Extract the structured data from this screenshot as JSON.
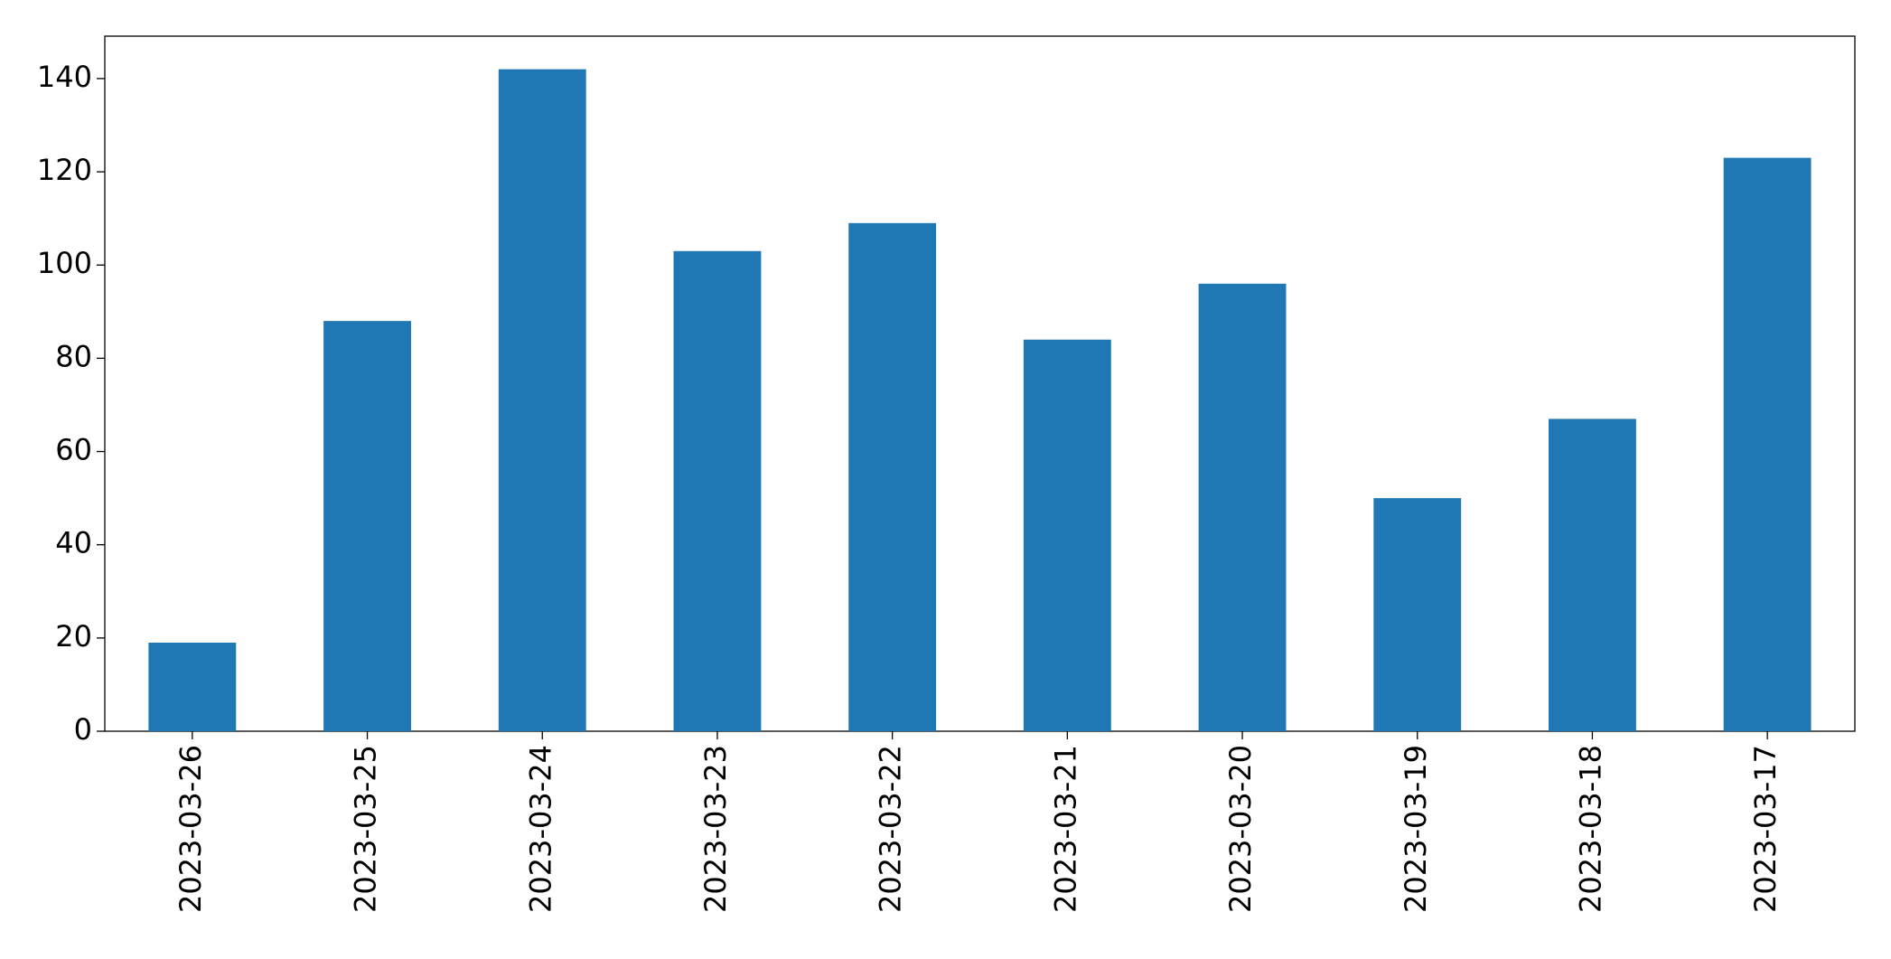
{
  "chart_data": {
    "type": "bar",
    "categories": [
      "2023-03-26",
      "2023-03-25",
      "2023-03-24",
      "2023-03-23",
      "2023-03-22",
      "2023-03-21",
      "2023-03-20",
      "2023-03-19",
      "2023-03-18",
      "2023-03-17"
    ],
    "values": [
      19,
      88,
      142,
      103,
      109,
      84,
      96,
      50,
      67,
      123
    ],
    "color": "#1f77b4",
    "ylim": [
      0,
      149.1
    ],
    "yticks": [
      0,
      20,
      40,
      60,
      80,
      100,
      120,
      140
    ],
    "grid": false
  }
}
